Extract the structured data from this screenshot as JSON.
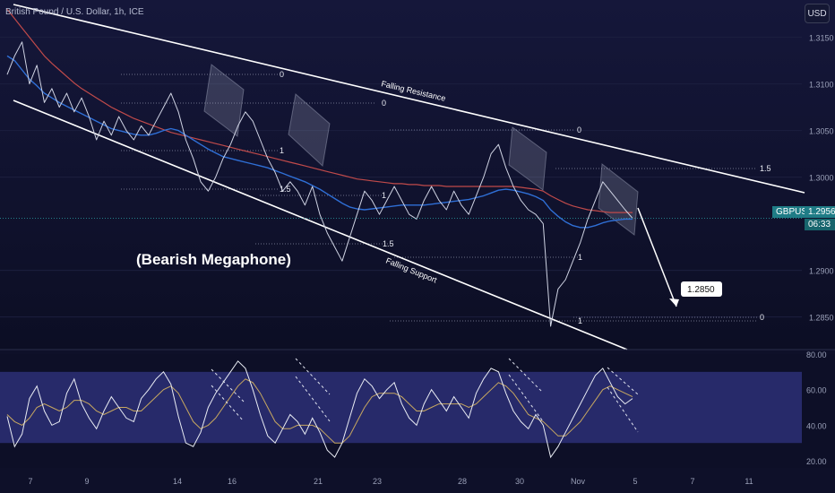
{
  "header": {
    "symbol_line": "British Pound / U.S. Dollar, 1h, ICE",
    "currency_button": "USD"
  },
  "price_tag": {
    "symbol": "GBPUSD",
    "price": "1.2956",
    "countdown": "06:33"
  },
  "chart_data": [
    {
      "type": "line",
      "title": "British Pound / U.S. Dollar, 1h, ICE",
      "x_ticks": [
        "7",
        "9",
        "14",
        "16",
        "21",
        "23",
        "28",
        "30",
        "Nov",
        "5",
        "7",
        "11"
      ],
      "y_ticks": [
        "1.3150",
        "1.3100",
        "1.3050",
        "1.3000",
        "1.2900",
        "1.2850"
      ],
      "ylim": [
        1.2815,
        1.319
      ],
      "series": [
        {
          "values": [
            1.311,
            1.313,
            1.3145,
            1.31,
            1.312,
            1.308,
            1.3095,
            1.3075,
            1.309,
            1.307,
            1.3085,
            1.3065,
            1.304,
            1.306,
            1.3045,
            1.3065,
            1.305,
            1.304,
            1.3055,
            1.3045,
            1.306,
            1.3075,
            1.309,
            1.307,
            1.304,
            1.302,
            1.2995,
            1.2985,
            1.3,
            1.302,
            1.3035,
            1.3055,
            1.307,
            1.306,
            1.304,
            1.302,
            1.3005,
            1.2985,
            1.2995,
            1.2985,
            1.297,
            1.299,
            1.296,
            1.294,
            1.2925,
            1.291,
            1.2935,
            1.296,
            1.2985,
            1.2975,
            1.296,
            1.2975,
            1.299,
            1.2975,
            1.296,
            1.2955,
            1.2975,
            1.299,
            1.2975,
            1.2965,
            1.2985,
            1.297,
            1.296,
            1.298,
            1.3,
            1.3025,
            1.3035,
            1.301,
            1.299,
            1.2975,
            1.2965,
            1.296,
            1.295,
            1.284,
            1.288,
            1.289,
            1.291,
            1.293,
            1.2955,
            1.2975,
            1.2995,
            1.2985,
            1.2975,
            1.2965,
            1.2956
          ]
        },
        {
          "values": [
            1.313,
            1.3125,
            1.3115,
            1.3105,
            1.3098,
            1.309,
            1.3085,
            1.308,
            1.3076,
            1.3072,
            1.3068,
            1.3064,
            1.306,
            1.3056,
            1.3052,
            1.305,
            1.3048,
            1.3046,
            1.3045,
            1.3045,
            1.3047,
            1.305,
            1.3052,
            1.305,
            1.3045,
            1.304,
            1.3035,
            1.303,
            1.3026,
            1.3022,
            1.302,
            1.3018,
            1.3016,
            1.3014,
            1.3012,
            1.301,
            1.3007,
            1.3004,
            1.3001,
            1.2998,
            1.2995,
            1.2991,
            1.2987,
            1.2982,
            1.2977,
            1.2972,
            1.2968,
            1.2966,
            1.2965,
            1.2966,
            1.2967,
            1.2968,
            1.2969,
            1.297,
            1.297,
            1.297,
            1.297,
            1.2971,
            1.2972,
            1.2973,
            1.2974,
            1.2975,
            1.2976,
            1.2978,
            1.298,
            1.2983,
            1.2986,
            1.2987,
            1.2986,
            1.2984,
            1.2982,
            1.2979,
            1.2975,
            1.2965,
            1.2958,
            1.2952,
            1.2948,
            1.2946,
            1.2946,
            1.2948,
            1.2951,
            1.2953,
            1.2954,
            1.2955,
            1.2955
          ]
        },
        {
          "values": [
            1.318,
            1.317,
            1.316,
            1.315,
            1.314,
            1.313,
            1.3122,
            1.3115,
            1.3108,
            1.3101,
            1.3095,
            1.309,
            1.3085,
            1.308,
            1.3075,
            1.3071,
            1.3067,
            1.3063,
            1.306,
            1.3057,
            1.3054,
            1.3051,
            1.3048,
            1.3046,
            1.3044,
            1.3042,
            1.304,
            1.3038,
            1.3036,
            1.3034,
            1.3032,
            1.303,
            1.3028,
            1.3026,
            1.3024,
            1.3022,
            1.302,
            1.3018,
            1.3016,
            1.3014,
            1.3012,
            1.301,
            1.3008,
            1.3006,
            1.3004,
            1.3002,
            1.3,
            1.2998,
            1.2997,
            1.2996,
            1.2995,
            1.2994,
            1.2993,
            1.2993,
            1.2992,
            1.2992,
            1.2991,
            1.2991,
            1.2991,
            1.299,
            1.299,
            1.299,
            1.299,
            1.299,
            1.299,
            1.299,
            1.299,
            1.299,
            1.299,
            1.2989,
            1.2988,
            1.2987,
            1.2985,
            1.298,
            1.2976,
            1.2972,
            1.2969,
            1.2967,
            1.2965,
            1.2964,
            1.2963,
            1.2962,
            1.2962,
            1.2962,
            1.2962
          ]
        }
      ],
      "annotations": {
        "pattern_label": "(Bearish Megaphone)",
        "upper_line": "Falling Resistance",
        "lower_line": "Falling Support",
        "target": "1.2850",
        "fib_labels": [
          "0",
          "0",
          "1",
          "1.5",
          "1",
          "1.5",
          "0",
          "1",
          "1.5",
          "0",
          "1"
        ]
      },
      "x_channel": {
        "lines": [
          [
            [
              1.3148,
              1.3072
            ],
            [
              1.3042,
              1.3012
            ]
          ]
        ]
      }
    },
    {
      "type": "line",
      "y_ticks": [
        "80.00",
        "60.00",
        "40.00",
        "20.00"
      ],
      "ylim": [
        16,
        80
      ],
      "series": [
        {
          "values": [
            45,
            28,
            35,
            55,
            62,
            48,
            40,
            42,
            58,
            66,
            52,
            44,
            38,
            48,
            56,
            50,
            44,
            42,
            55,
            60,
            66,
            70,
            63,
            45,
            30,
            28,
            36,
            50,
            58,
            64,
            70,
            76,
            72,
            60,
            46,
            34,
            30,
            38,
            46,
            42,
            35,
            44,
            36,
            26,
            22,
            30,
            44,
            58,
            66,
            62,
            55,
            60,
            64,
            52,
            44,
            40,
            52,
            60,
            54,
            48,
            56,
            50,
            44,
            58,
            66,
            72,
            70,
            58,
            48,
            42,
            38,
            46,
            40,
            22,
            28,
            36,
            44,
            52,
            60,
            68,
            72,
            64,
            56,
            52,
            55
          ]
        },
        {
          "values": [
            46,
            42,
            40,
            44,
            50,
            52,
            50,
            48,
            50,
            54,
            54,
            52,
            48,
            46,
            48,
            50,
            50,
            48,
            48,
            52,
            56,
            60,
            62,
            58,
            50,
            42,
            38,
            40,
            44,
            50,
            56,
            62,
            66,
            64,
            58,
            50,
            42,
            38,
            38,
            40,
            40,
            40,
            38,
            34,
            30,
            30,
            34,
            42,
            50,
            56,
            58,
            58,
            58,
            56,
            52,
            48,
            48,
            50,
            52,
            52,
            52,
            52,
            50,
            52,
            56,
            60,
            64,
            62,
            58,
            52,
            46,
            44,
            42,
            38,
            34,
            34,
            38,
            42,
            48,
            54,
            60,
            62,
            60,
            58,
            56
          ]
        }
      ],
      "bands": [
        30,
        70
      ]
    }
  ],
  "colors": {
    "background": "#0e1029",
    "price": "#cfd3e3",
    "ema_fast": "#2f6fd6",
    "ema_slow": "#c04a4a",
    "trendline": "#ffffff",
    "rsi": "#e9ecf4",
    "rsi_signal": "#c8a860",
    "accent_tag": "#1f7c86"
  }
}
